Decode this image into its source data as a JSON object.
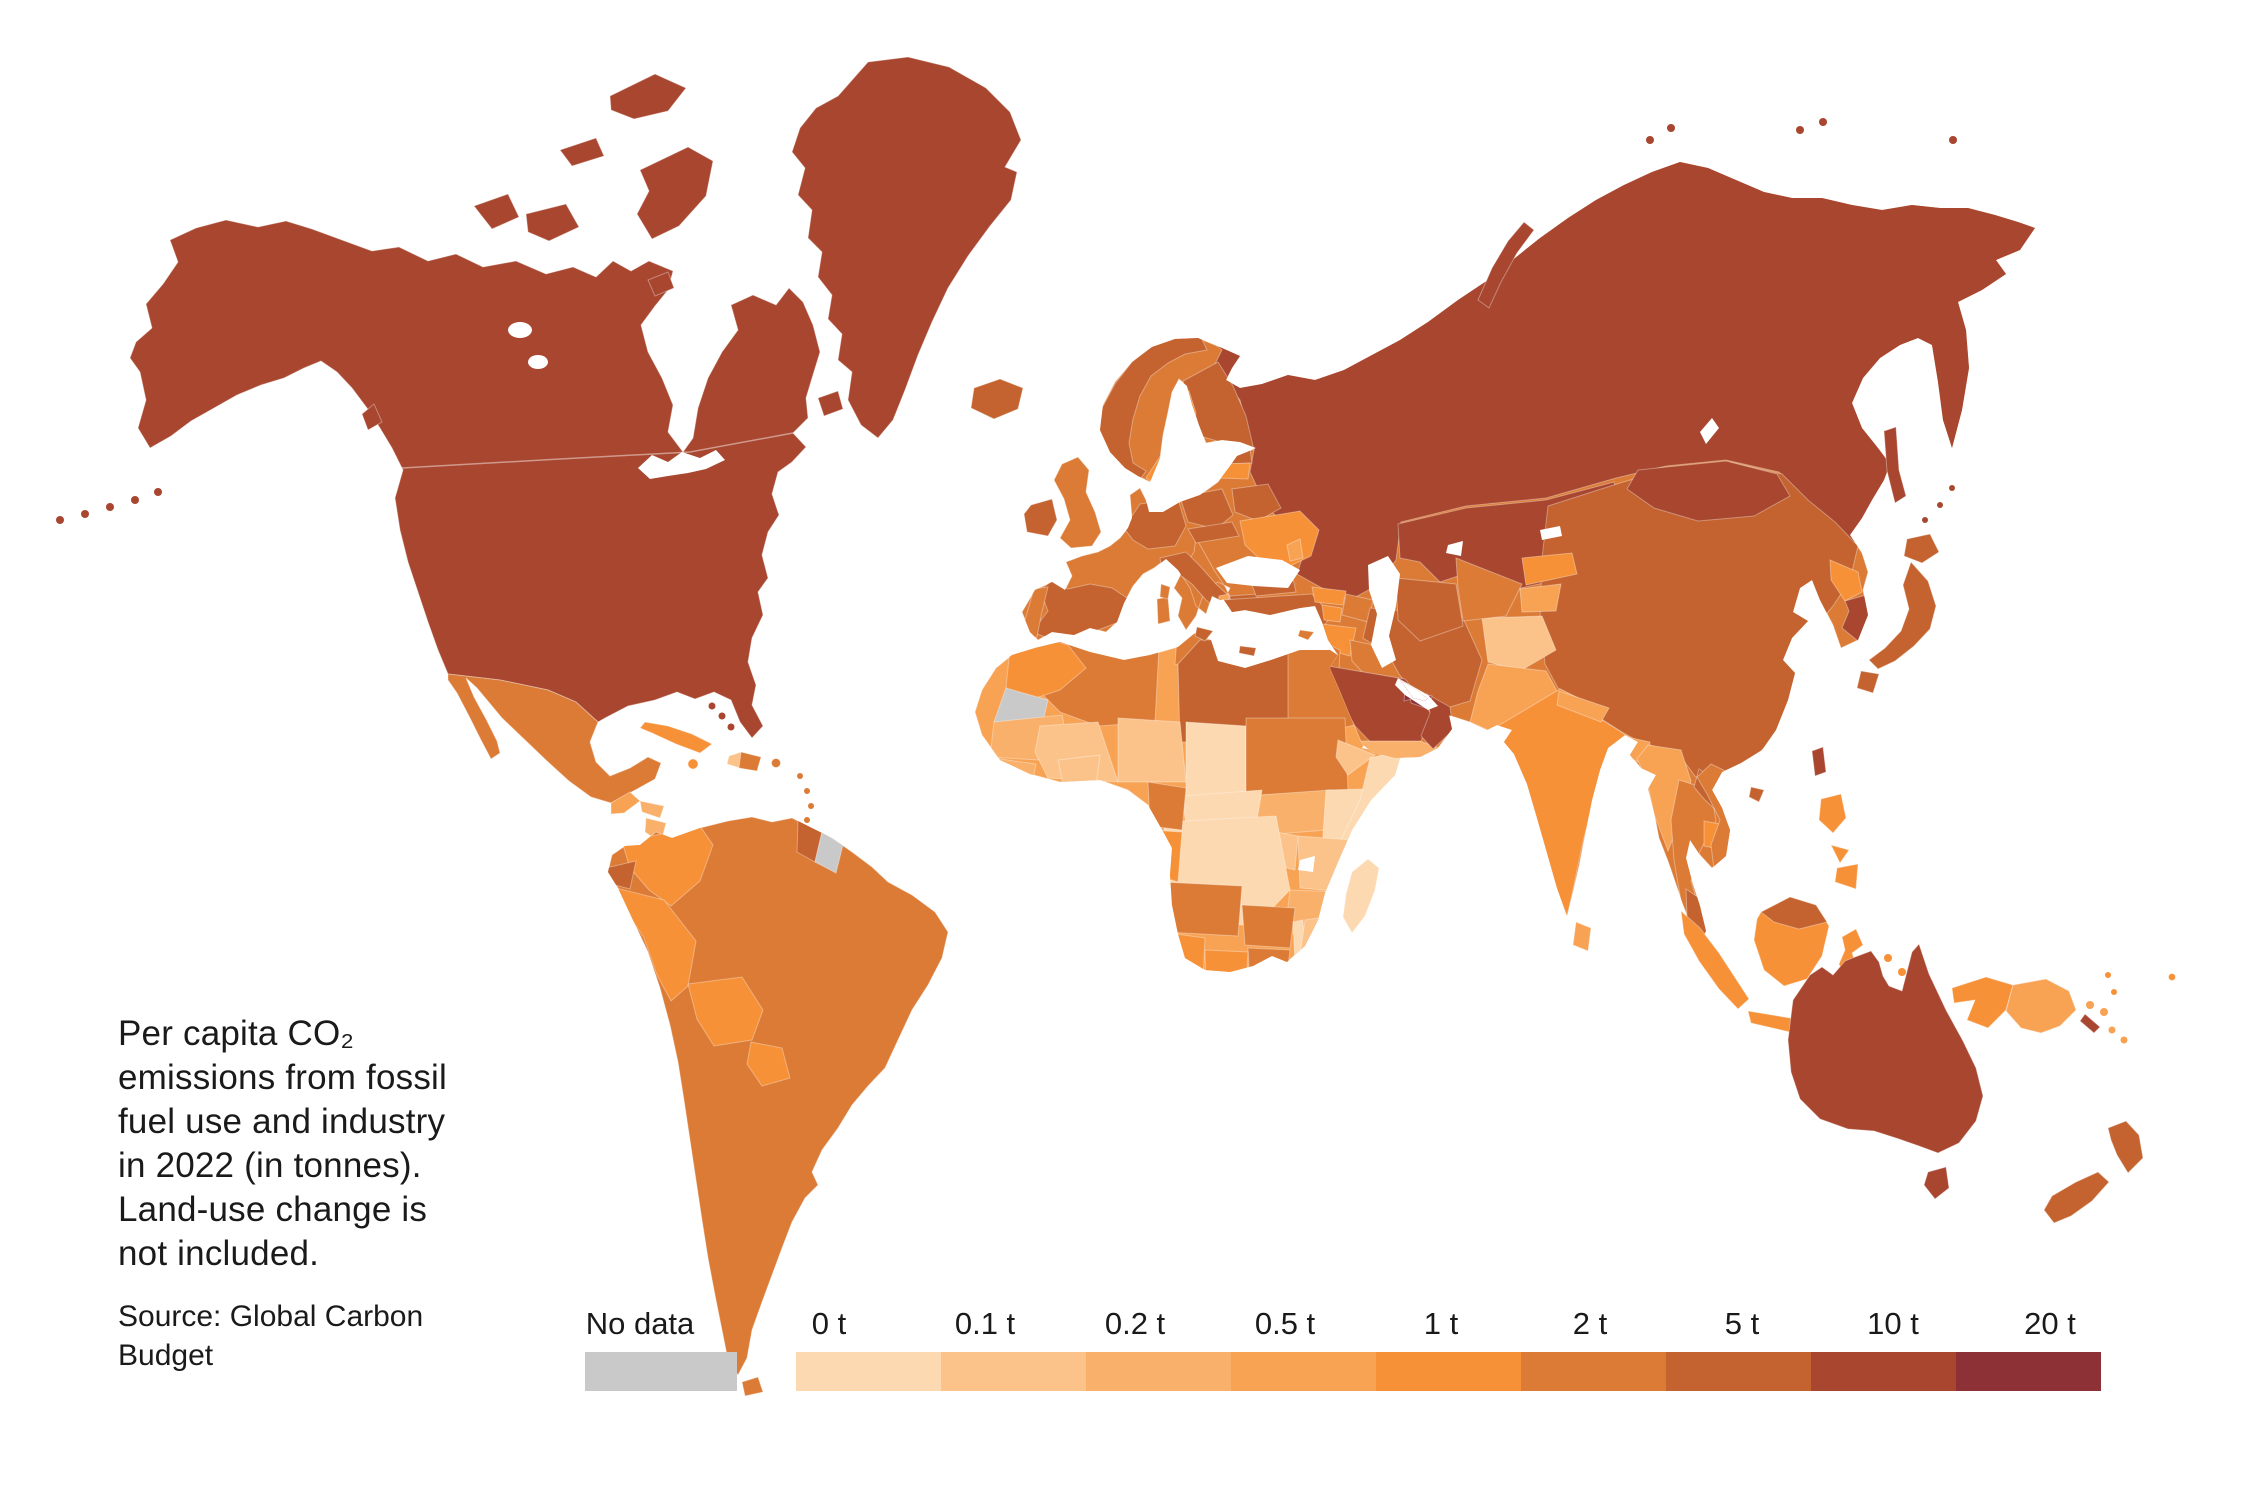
{
  "annotation": {
    "description_lines": [
      "Per capita CO₂",
      "emissions from fossil",
      "fuel use and industry",
      "in 2022 (in tonnes).",
      "Land-use change is",
      "not included."
    ],
    "source_lines": [
      "Source: Global Carbon",
      "Budget"
    ]
  },
  "legend": {
    "no_data_label": "No data",
    "no_data_color": "#c9c9c9",
    "stops": [
      "0 t",
      "0.1 t",
      "0.2 t",
      "0.5 t",
      "1 t",
      "2 t",
      "5 t",
      "10 t",
      "20 t"
    ],
    "bucket_colors": [
      "#fcd9b0",
      "#fbc38a",
      "#f9b06a",
      "#f8a254",
      "#f69138",
      "#db7b36",
      "#c4632f",
      "#a8462f",
      "#8e3136"
    ]
  },
  "map": {
    "palette": {
      "no_data": "#c9c9c9",
      "b0": "#fcd9b0",
      "b1": "#fbc38a",
      "b2": "#f9b06a",
      "b3": "#f8a254",
      "b4": "#f69138",
      "b5": "#db7b36",
      "b6": "#c4632f",
      "b7": "#a8462f",
      "b8": "#8e3136"
    },
    "regions": {
      "na-mainland": "b7",
      "canada-banks": "b7",
      "canada-victoria": "b7",
      "canada-baffin": "b7",
      "canada-ellesmere": "b7",
      "canada-devon": "b7",
      "canada-southampton": "b7",
      "newfoundland": "b7",
      "vancouver-island": "b7",
      "aleutians": "b7",
      "greenland": "b7",
      "mexico": "b5",
      "guatemala": "b3",
      "honduras": "b2",
      "nicaragua": "b2",
      "costa-rica": "b4",
      "panama": "b4",
      "cuba": "b4",
      "bahamas": "b7",
      "jamaica": "b4",
      "haiti": "b1",
      "dominican-republic": "b5",
      "puerto-rico": "b5",
      "lesser-antilles": "b5",
      "trinidad": "b8",
      "sa-base": "b5",
      "colombia": "b4",
      "guyana": "b6",
      "suriname": "no_data",
      "ecuador": "b6",
      "peru": "b4",
      "bolivia": "b4",
      "paraguay": "b4",
      "tierra-del-fuego": "b5",
      "africa-base": "b3",
      "algeria": "b5",
      "tunisia": "b5",
      "libya": "b6",
      "egypt": "b5",
      "morocco": "b4",
      "western-sahara": "no_data",
      "mauritania": "b2",
      "mali": "b1",
      "niger": "b1",
      "chad": "b0",
      "sudan": "b5",
      "south-sudan": "b2",
      "eritrea": "b1",
      "ethiopia": "b0",
      "somalia": "b0",
      "kenya": "b1",
      "uganda": "b1",
      "drc": "b0",
      "car": "b0",
      "cameroon": "b5",
      "gabon-congo": "b4",
      "burkina-faso": "b1",
      "guinea": "b2",
      "tanzania": "b2",
      "angola": "b5",
      "zambia": "b5",
      "malawi": "b0",
      "mozambique": "b1",
      "zimbabwe": "b5",
      "botswana": "b4",
      "namibia": "b4",
      "south-africa": "b6",
      "madagascar": "b0",
      "eurasia-base": "b5",
      "russia": "b7",
      "kazakhstan": "b7",
      "china": "b6",
      "mongolia": "b7",
      "north-korea": "b4",
      "south-korea": "b7",
      "finland": "b6",
      "sweden": "b4",
      "norway": "b6",
      "estonia": "b6",
      "latvia": "b4",
      "belarus": "b6",
      "ukraine": "b4",
      "moldova": "b3",
      "poland": "b6",
      "germany-benelux": "b6",
      "czech-slovakia": "b6",
      "italy": "b6",
      "spain": "b6",
      "portugal": "b5",
      "greece": "b6",
      "albania": "b3",
      "bulgaria": "b6",
      "turkey": "b6",
      "georgia": "b4",
      "azerbaijan": "b5",
      "armenia": "b4",
      "syria": "b4",
      "israel-jordan": "b5",
      "iraq": "b5",
      "kuwait": "b8",
      "iran": "b6",
      "afghanistan": "b1",
      "pakistan": "b3",
      "turkmenistan": "b6",
      "uzbekistan": "b5",
      "kyrgyzstan": "b4",
      "tajikistan": "b3",
      "saudi-arabia": "b7",
      "yemen": "b2",
      "oman": "b7",
      "uae": "b8",
      "qatar": "b8",
      "india": "b4",
      "nepal": "b3",
      "bangladesh": "b3",
      "myanmar": "b3",
      "thailand": "b5",
      "laos": "b6",
      "cambodia": "b4",
      "vietnam": "b5",
      "malaysia": "b6",
      "uk": "b5",
      "ireland": "b6",
      "iceland": "b6",
      "sicily": "b6",
      "sardinia": "b5",
      "corsica": "b5",
      "crete": "b6",
      "cyprus": "b5",
      "sri-lanka": "b3",
      "taiwan": "b7",
      "hainan": "b6",
      "japan-hokkaido": "b6",
      "japan-honshu": "b6",
      "japan-kyushu": "b6",
      "sakhalin": "b7",
      "kurils": "b7",
      "philippines-luzon": "b4",
      "philippines-visayas": "b4",
      "philippines-mindanao": "b4",
      "sumatra": "b4",
      "java": "b4",
      "borneo": "b4",
      "borneo-malaysia": "b6",
      "sulawesi": "b4",
      "moluccas": "b4",
      "lesser-sunda": "b4",
      "west-papua": "b4",
      "png": "b3",
      "new-britain": "b3",
      "solomon": "b3",
      "vanuatu": "b4",
      "new-caledonia": "b7",
      "fiji": "b4",
      "australia": "b7",
      "tasmania": "b7",
      "nz-north": "b6",
      "nz-south": "b6",
      "novaya-zemlya": "b7",
      "arctic-islands": "b7"
    }
  },
  "chart_data": {
    "type": "heatmap",
    "subtype": "choropleth_world_map",
    "title": "Per capita CO₂ emissions from fossil fuel use and industry in 2022 (in tonnes). Land-use change is not included.",
    "source": "Source: Global Carbon Budget",
    "legend_position": "bottom",
    "no_data": {
      "label": "No data",
      "color": "#c9c9c9"
    },
    "scale": {
      "unit": "tonnes CO₂ per capita",
      "stops": [
        "0 t",
        "0.1 t",
        "0.2 t",
        "0.5 t",
        "1 t",
        "2 t",
        "5 t",
        "10 t",
        "20 t"
      ],
      "bucket_labels": [
        "0–0.1 t",
        "0.1–0.2 t",
        "0.2–0.5 t",
        "0.5–1 t",
        "1–2 t",
        "2–5 t",
        "5–10 t",
        "10–20 t",
        "20 t+"
      ],
      "bucket_colors": [
        "#fcd9b0",
        "#fbc38a",
        "#f9b06a",
        "#f8a254",
        "#f69138",
        "#db7b36",
        "#c4632f",
        "#a8462f",
        "#8e3136"
      ]
    },
    "regions": [
      {
        "name": "United States",
        "bucket": "10–20 t"
      },
      {
        "name": "Canada",
        "bucket": "10–20 t"
      },
      {
        "name": "Greenland",
        "bucket": "10–20 t"
      },
      {
        "name": "Mexico",
        "bucket": "2–5 t"
      },
      {
        "name": "Guatemala",
        "bucket": "0.5–1 t"
      },
      {
        "name": "Honduras",
        "bucket": "0.2–0.5 t"
      },
      {
        "name": "Nicaragua",
        "bucket": "0.2–0.5 t"
      },
      {
        "name": "Costa Rica",
        "bucket": "1–2 t"
      },
      {
        "name": "Panama",
        "bucket": "1–2 t"
      },
      {
        "name": "Cuba",
        "bucket": "1–2 t"
      },
      {
        "name": "Haiti",
        "bucket": "0.1–0.2 t"
      },
      {
        "name": "Dominican Republic",
        "bucket": "2–5 t"
      },
      {
        "name": "Trinidad and Tobago",
        "bucket": "20 t+"
      },
      {
        "name": "Colombia",
        "bucket": "1–2 t"
      },
      {
        "name": "Venezuela",
        "bucket": "2–5 t"
      },
      {
        "name": "Guyana",
        "bucket": "5–10 t"
      },
      {
        "name": "Suriname",
        "bucket": "No data"
      },
      {
        "name": "Ecuador",
        "bucket": "5–10 t"
      },
      {
        "name": "Peru",
        "bucket": "1–2 t"
      },
      {
        "name": "Brazil",
        "bucket": "2–5 t"
      },
      {
        "name": "Bolivia",
        "bucket": "1–2 t"
      },
      {
        "name": "Paraguay",
        "bucket": "1–2 t"
      },
      {
        "name": "Chile",
        "bucket": "2–5 t"
      },
      {
        "name": "Argentina",
        "bucket": "2–5 t"
      },
      {
        "name": "Uruguay",
        "bucket": "2–5 t"
      },
      {
        "name": "Morocco",
        "bucket": "1–2 t"
      },
      {
        "name": "Algeria",
        "bucket": "2–5 t"
      },
      {
        "name": "Tunisia",
        "bucket": "2–5 t"
      },
      {
        "name": "Libya",
        "bucket": "5–10 t"
      },
      {
        "name": "Egypt",
        "bucket": "2–5 t"
      },
      {
        "name": "Western Sahara",
        "bucket": "No data"
      },
      {
        "name": "Mauritania",
        "bucket": "0.2–0.5 t"
      },
      {
        "name": "Mali",
        "bucket": "0.1–0.2 t"
      },
      {
        "name": "Niger",
        "bucket": "0.1–0.2 t"
      },
      {
        "name": "Chad",
        "bucket": "0–0.1 t"
      },
      {
        "name": "Sudan",
        "bucket": "2–5 t"
      },
      {
        "name": "Ethiopia",
        "bucket": "0–0.1 t"
      },
      {
        "name": "Somalia",
        "bucket": "0–0.1 t"
      },
      {
        "name": "Kenya",
        "bucket": "0.1–0.2 t"
      },
      {
        "name": "DR Congo",
        "bucket": "0–0.1 t"
      },
      {
        "name": "Nigeria",
        "bucket": "0.5–1 t"
      },
      {
        "name": "Angola",
        "bucket": "2–5 t"
      },
      {
        "name": "Zambia",
        "bucket": "2–5 t"
      },
      {
        "name": "Namibia",
        "bucket": "1–2 t"
      },
      {
        "name": "Botswana",
        "bucket": "1–2 t"
      },
      {
        "name": "South Africa",
        "bucket": "5–10 t"
      },
      {
        "name": "Madagascar",
        "bucket": "0–0.1 t"
      },
      {
        "name": "Mozambique",
        "bucket": "0.1–0.2 t"
      },
      {
        "name": "Tanzania",
        "bucket": "0.2–0.5 t"
      },
      {
        "name": "Spain",
        "bucket": "5–10 t"
      },
      {
        "name": "Portugal",
        "bucket": "2–5 t"
      },
      {
        "name": "France",
        "bucket": "2–5 t"
      },
      {
        "name": "United Kingdom",
        "bucket": "2–5 t"
      },
      {
        "name": "Ireland",
        "bucket": "5–10 t"
      },
      {
        "name": "Iceland",
        "bucket": "5–10 t"
      },
      {
        "name": "Norway",
        "bucket": "5–10 t"
      },
      {
        "name": "Sweden",
        "bucket": "1–2 t"
      },
      {
        "name": "Finland",
        "bucket": "5–10 t"
      },
      {
        "name": "Germany",
        "bucket": "5–10 t"
      },
      {
        "name": "Poland",
        "bucket": "5–10 t"
      },
      {
        "name": "Italy",
        "bucket": "5–10 t"
      },
      {
        "name": "Greece",
        "bucket": "5–10 t"
      },
      {
        "name": "Ukraine",
        "bucket": "1–2 t"
      },
      {
        "name": "Belarus",
        "bucket": "5–10 t"
      },
      {
        "name": "Turkey",
        "bucket": "5–10 t"
      },
      {
        "name": "Russia",
        "bucket": "10–20 t"
      },
      {
        "name": "Kazakhstan",
        "bucket": "10–20 t"
      },
      {
        "name": "Saudi Arabia",
        "bucket": "10–20 t"
      },
      {
        "name": "United Arab Emirates",
        "bucket": "20 t+"
      },
      {
        "name": "Qatar",
        "bucket": "20 t+"
      },
      {
        "name": "Kuwait",
        "bucket": "20 t+"
      },
      {
        "name": "Oman",
        "bucket": "10–20 t"
      },
      {
        "name": "Yemen",
        "bucket": "0.2–0.5 t"
      },
      {
        "name": "Iran",
        "bucket": "5–10 t"
      },
      {
        "name": "Iraq",
        "bucket": "2–5 t"
      },
      {
        "name": "Afghanistan",
        "bucket": "0.1–0.2 t"
      },
      {
        "name": "Pakistan",
        "bucket": "0.5–1 t"
      },
      {
        "name": "India",
        "bucket": "1–2 t"
      },
      {
        "name": "Nepal",
        "bucket": "0.5–1 t"
      },
      {
        "name": "Bangladesh",
        "bucket": "0.5–1 t"
      },
      {
        "name": "Sri Lanka",
        "bucket": "0.5–1 t"
      },
      {
        "name": "Myanmar",
        "bucket": "0.5–1 t"
      },
      {
        "name": "Thailand",
        "bucket": "2–5 t"
      },
      {
        "name": "Laos",
        "bucket": "5–10 t"
      },
      {
        "name": "Vietnam",
        "bucket": "2–5 t"
      },
      {
        "name": "Cambodia",
        "bucket": "1–2 t"
      },
      {
        "name": "Malaysia",
        "bucket": "5–10 t"
      },
      {
        "name": "Indonesia",
        "bucket": "1–2 t"
      },
      {
        "name": "Philippines",
        "bucket": "1–2 t"
      },
      {
        "name": "China",
        "bucket": "5–10 t"
      },
      {
        "name": "Mongolia",
        "bucket": "10–20 t"
      },
      {
        "name": "North Korea",
        "bucket": "1–2 t"
      },
      {
        "name": "South Korea",
        "bucket": "10–20 t"
      },
      {
        "name": "Japan",
        "bucket": "5–10 t"
      },
      {
        "name": "Taiwan",
        "bucket": "10–20 t"
      },
      {
        "name": "Papua New Guinea",
        "bucket": "0.5–1 t"
      },
      {
        "name": "Australia",
        "bucket": "10–20 t"
      },
      {
        "name": "New Zealand",
        "bucket": "5–10 t"
      }
    ]
  }
}
